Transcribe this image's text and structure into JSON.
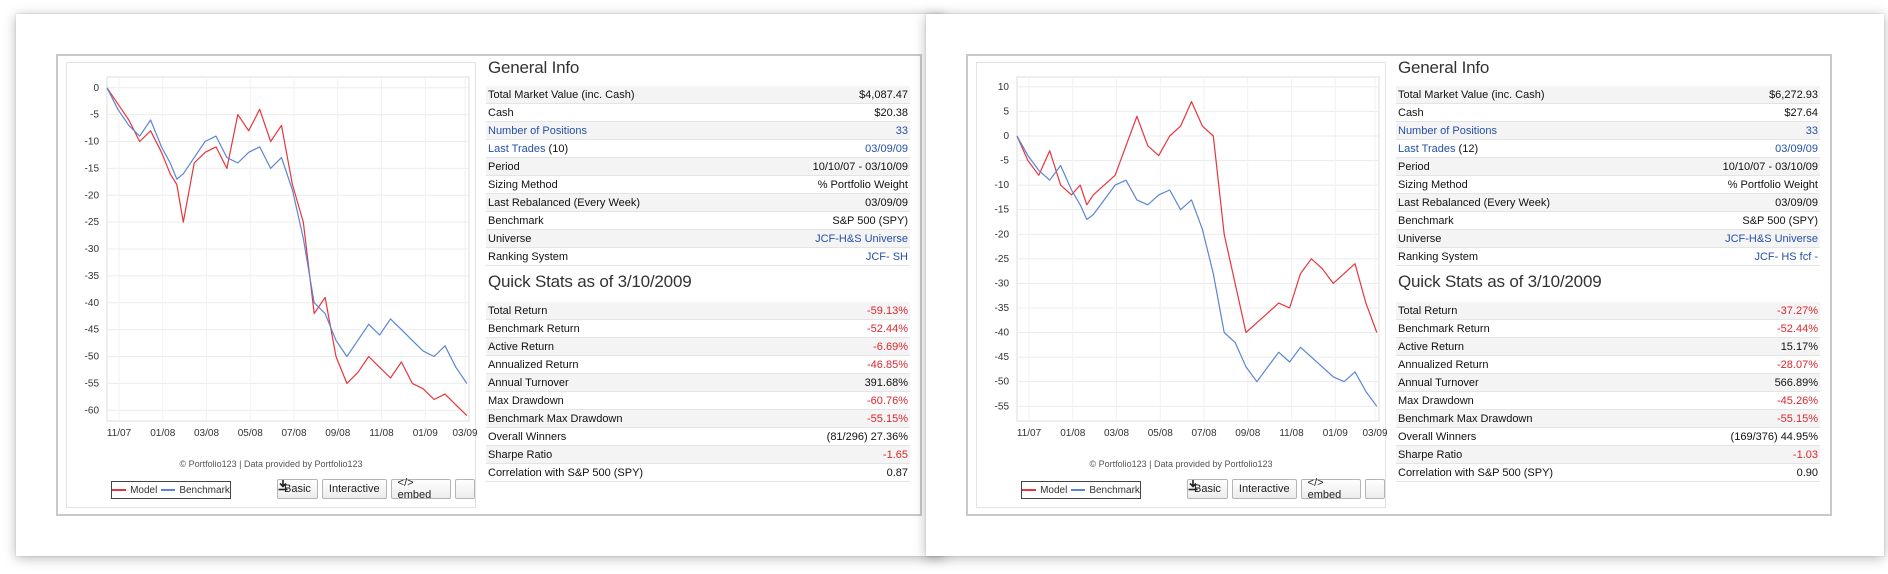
{
  "panels": [
    {
      "general_title": "General Info",
      "general": [
        {
          "label": "Total Market Value (inc. Cash)",
          "value": "$4,087.47"
        },
        {
          "label": "Cash",
          "value": "$20.38"
        },
        {
          "label": "Number of Positions",
          "value": "33",
          "label_link": true,
          "value_link": true
        },
        {
          "label": "Last Trades",
          "label_suffix": " (10)",
          "value": "03/09/09",
          "label_link": true,
          "value_link": true
        },
        {
          "label": "Period",
          "value": "10/10/07 - 03/10/09"
        },
        {
          "label": "Sizing Method",
          "value": "% Portfolio Weight"
        },
        {
          "label": "Last Rebalanced (Every Week)",
          "value": "03/09/09"
        },
        {
          "label": "Benchmark",
          "value": "S&P 500 (SPY)"
        },
        {
          "label": "Universe",
          "value": "JCF-H&S Universe",
          "value_link": true
        },
        {
          "label": "Ranking System",
          "value": "JCF- SH",
          "value_link": true
        }
      ],
      "quick_title": "Quick Stats as of 3/10/2009",
      "quick": [
        {
          "label": "Total Return",
          "value": "-59.13%",
          "neg": true
        },
        {
          "label": "Benchmark Return",
          "value": "-52.44%",
          "neg": true
        },
        {
          "label": "Active Return",
          "value": "-6.69%",
          "neg": true
        },
        {
          "label": "Annualized Return",
          "value": "-46.85%",
          "neg": true
        },
        {
          "label": "Annual Turnover",
          "value": "391.68%"
        },
        {
          "label": "Max Drawdown",
          "value": "-60.76%",
          "neg": true
        },
        {
          "label": "Benchmark Max Drawdown",
          "value": "-55.15%",
          "neg": true
        },
        {
          "label": "Overall Winners",
          "value": "(81/296) 27.36%"
        },
        {
          "label": "Sharpe Ratio",
          "value": "-1.65",
          "neg": true
        },
        {
          "label": "Correlation with S&P 500 (SPY)",
          "value": "0.87"
        }
      ],
      "credit": "© Portfolio123 | Data provided by Portfolio123",
      "legend": [
        "Model",
        "Benchmark"
      ],
      "buttons": {
        "basic": "Basic",
        "interactive": "Interactive",
        "embed": "</> embed"
      },
      "download_icon": "download-icon"
    },
    {
      "general_title": "General Info",
      "general": [
        {
          "label": "Total Market Value (inc. Cash)",
          "value": "$6,272.93"
        },
        {
          "label": "Cash",
          "value": "$27.64"
        },
        {
          "label": "Number of Positions",
          "value": "33",
          "label_link": true,
          "value_link": true
        },
        {
          "label": "Last Trades",
          "label_suffix": " (12)",
          "value": "03/09/09",
          "label_link": true,
          "value_link": true
        },
        {
          "label": "Period",
          "value": "10/10/07 - 03/10/09"
        },
        {
          "label": "Sizing Method",
          "value": "% Portfolio Weight"
        },
        {
          "label": "Last Rebalanced (Every Week)",
          "value": "03/09/09"
        },
        {
          "label": "Benchmark",
          "value": "S&P 500 (SPY)"
        },
        {
          "label": "Universe",
          "value": "JCF-H&S Universe",
          "value_link": true
        },
        {
          "label": "Ranking System",
          "value": "JCF- HS fcf -",
          "value_link": true
        }
      ],
      "quick_title": "Quick Stats as of 3/10/2009",
      "quick": [
        {
          "label": "Total Return",
          "value": "-37.27%",
          "neg": true
        },
        {
          "label": "Benchmark Return",
          "value": "-52.44%",
          "neg": true
        },
        {
          "label": "Active Return",
          "value": "15.17%"
        },
        {
          "label": "Annualized Return",
          "value": "-28.07%",
          "neg": true
        },
        {
          "label": "Annual Turnover",
          "value": "566.89%"
        },
        {
          "label": "Max Drawdown",
          "value": "-45.26%",
          "neg": true
        },
        {
          "label": "Benchmark Max Drawdown",
          "value": "-55.15%",
          "neg": true
        },
        {
          "label": "Overall Winners",
          "value": "(169/376) 44.95%"
        },
        {
          "label": "Sharpe Ratio",
          "value": "-1.03",
          "neg": true
        },
        {
          "label": "Correlation with S&P 500 (SPY)",
          "value": "0.90"
        }
      ],
      "credit": "© Portfolio123 | Data provided by Portfolio123",
      "legend": [
        "Model",
        "Benchmark"
      ],
      "buttons": {
        "basic": "Basic",
        "interactive": "Interactive",
        "embed": "</> embed"
      },
      "download_icon": "download-icon"
    }
  ],
  "colors": {
    "model": "#e8353c",
    "benchmark": "#5b86d4",
    "link": "#2550a8",
    "negative": "#d9262e"
  },
  "chart_data": [
    {
      "type": "line",
      "x_tick_labels": [
        "11/07",
        "01/08",
        "03/08",
        "05/08",
        "07/08",
        "09/08",
        "11/08",
        "01/09",
        "03/09"
      ],
      "y_ticks": [
        0,
        -5,
        -10,
        -15,
        -20,
        -25,
        -30,
        -35,
        -40,
        -45,
        -50,
        -55,
        -60
      ],
      "ylim": [
        -62,
        2
      ],
      "series": [
        {
          "name": "Model",
          "color": "#e8353c",
          "x": [
            0,
            0.5,
            1,
            1.5,
            2,
            2.5,
            2.9,
            3.2,
            3.5,
            4,
            4.5,
            5,
            5.5,
            6,
            6.5,
            7,
            7.5,
            8,
            8.5,
            9,
            9.5,
            10,
            10.5,
            11,
            11.5,
            12,
            12.5,
            13,
            13.5,
            14,
            14.5,
            15,
            15.5,
            16,
            16.5
          ],
          "y": [
            0,
            -3,
            -6,
            -10,
            -8,
            -12,
            -16,
            -18,
            -25,
            -14,
            -12,
            -11,
            -15,
            -5,
            -8,
            -4,
            -10,
            -7,
            -18,
            -25,
            -42,
            -39,
            -50,
            -55,
            -53,
            -50,
            -52,
            -54,
            -51,
            -55,
            -56,
            -58,
            -57,
            -59,
            -61
          ]
        },
        {
          "name": "Benchmark",
          "color": "#5b86d4",
          "x": [
            0,
            0.5,
            1,
            1.5,
            2,
            2.5,
            2.9,
            3.2,
            3.5,
            4,
            4.5,
            5,
            5.5,
            6,
            6.5,
            7,
            7.5,
            8,
            8.5,
            9,
            9.5,
            10,
            10.5,
            11,
            11.5,
            12,
            12.5,
            13,
            13.5,
            14,
            14.5,
            15,
            15.5,
            16,
            16.5
          ],
          "y": [
            0,
            -4,
            -7,
            -9,
            -6,
            -11,
            -14,
            -17,
            -16,
            -13,
            -10,
            -9,
            -13,
            -14,
            -12,
            -11,
            -15,
            -13,
            -19,
            -28,
            -40,
            -42,
            -47,
            -50,
            -47,
            -44,
            -46,
            -43,
            -45,
            -47,
            -49,
            -50,
            -48,
            -52,
            -55
          ]
        }
      ]
    },
    {
      "type": "line",
      "x_tick_labels": [
        "11/07",
        "01/08",
        "03/08",
        "05/08",
        "07/08",
        "09/08",
        "11/08",
        "01/09",
        "03/09"
      ],
      "y_ticks": [
        10,
        5,
        0,
        -5,
        -10,
        -15,
        -20,
        -25,
        -30,
        -35,
        -40,
        -45,
        -50,
        -55
      ],
      "ylim": [
        -58,
        12
      ],
      "series": [
        {
          "name": "Model",
          "color": "#e8353c",
          "x": [
            0,
            0.5,
            1,
            1.5,
            2,
            2.5,
            2.9,
            3.2,
            3.5,
            4,
            4.5,
            5,
            5.5,
            6,
            6.5,
            7,
            7.5,
            8,
            8.5,
            9,
            9.5,
            10,
            10.5,
            11,
            11.5,
            12,
            12.5,
            13,
            13.5,
            14,
            14.5,
            15,
            15.5,
            16,
            16.5
          ],
          "y": [
            0,
            -5,
            -8,
            -3,
            -10,
            -12,
            -10,
            -14,
            -12,
            -10,
            -8,
            -2,
            4,
            -2,
            -4,
            0,
            2,
            7,
            2,
            0,
            -20,
            -30,
            -40,
            -38,
            -36,
            -34,
            -35,
            -28,
            -25,
            -27,
            -30,
            -28,
            -26,
            -34,
            -40
          ]
        },
        {
          "name": "Benchmark",
          "color": "#5b86d4",
          "x": [
            0,
            0.5,
            1,
            1.5,
            2,
            2.5,
            2.9,
            3.2,
            3.5,
            4,
            4.5,
            5,
            5.5,
            6,
            6.5,
            7,
            7.5,
            8,
            8.5,
            9,
            9.5,
            10,
            10.5,
            11,
            11.5,
            12,
            12.5,
            13,
            13.5,
            14,
            14.5,
            15,
            15.5,
            16,
            16.5
          ],
          "y": [
            0,
            -4,
            -7,
            -9,
            -6,
            -11,
            -14,
            -17,
            -16,
            -13,
            -10,
            -9,
            -13,
            -14,
            -12,
            -11,
            -15,
            -13,
            -19,
            -28,
            -40,
            -42,
            -47,
            -50,
            -47,
            -44,
            -46,
            -43,
            -45,
            -47,
            -49,
            -50,
            -48,
            -52,
            -55
          ]
        }
      ]
    }
  ]
}
